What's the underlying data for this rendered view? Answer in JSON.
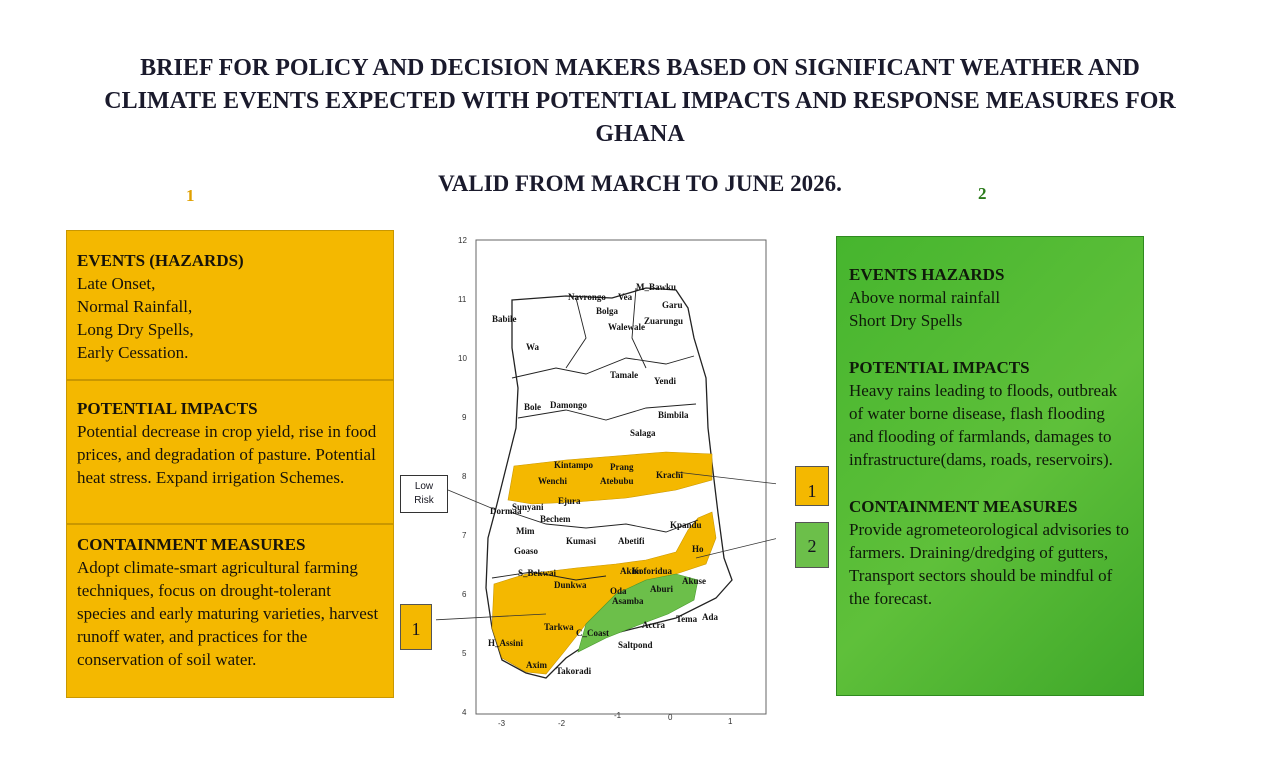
{
  "header": {
    "title_line1": "BRIEF FOR POLICY AND DECISION MAKERS BASED ON SIGNIFICANT WEATHER AND",
    "title_line2": "CLIMATE EVENTS EXPECTED WITH POTENTIAL IMPACTS AND RESPONSE MEASURES FOR",
    "title_line3": "GHANA",
    "valid": "VALID FROM  MARCH TO JUNE 2026."
  },
  "panel1": {
    "number": "1",
    "events_heading": "EVENTS (HAZARDS)",
    "events": [
      "Late Onset,",
      "Normal Rainfall,",
      "Long Dry Spells,",
      "Early Cessation."
    ],
    "impacts_heading": "POTENTIAL IMPACTS",
    "impacts_text": "Potential decrease in crop yield, rise in food prices, and degradation of pasture. Potential heat stress. Expand irrigation Schemes.",
    "measures_heading": "CONTAINMENT MEASURES",
    "measures_text": "Adopt climate-smart agricultural farming techniques, focus on drought-tolerant species and early maturing varieties, harvest runoff water, and practices for the conservation of soil water."
  },
  "panel2": {
    "number": "2",
    "events_heading": "EVENTS HAZARDS",
    "events": [
      "Above normal rainfall",
      "Short Dry Spells"
    ],
    "impacts_heading": "POTENTIAL IMPACTS",
    "impacts_text": "Heavy rains leading to floods, outbreak of water borne disease, flash flooding and flooding of farmlands, damages to infrastructure(dams, roads, reservoirs).",
    "measures_heading": "CONTAINMENT MEASURES",
    "measures_text": "Provide agrometeorological advisories to farmers. Draining/dredging of gutters, Transport sectors should be mindful of the forecast."
  },
  "legend": {
    "low_risk_line1": "Low",
    "low_risk_line2": "Risk",
    "zone1": "1",
    "zone2": "2"
  },
  "map": {
    "colors": {
      "zone1": "#f4b800",
      "zone2": "#6cbf4a",
      "low": "#ffffff"
    },
    "x_ticks": [
      "-3",
      "-2",
      "-1",
      "0",
      "1"
    ],
    "y_ticks": [
      "12",
      "11",
      "10",
      "9",
      "8",
      "7",
      "6",
      "5",
      "4"
    ],
    "towns": [
      "Navrongo",
      "Vea",
      "M_Bawku",
      "Garu",
      "Bolga",
      "Zuarungu",
      "Walewale",
      "Babile",
      "Wa",
      "Tamale",
      "Yendi",
      "Bole",
      "Damongo",
      "Bimbila",
      "Salaga",
      "Kintampo",
      "Prang",
      "Atebubu",
      "Wenchi",
      "Krachi",
      "Sunyani",
      "Ejura",
      "Dormaa",
      "Bechem",
      "Mim",
      "Goaso",
      "Kumasi",
      "Abetifi",
      "Kpandu",
      "Ho",
      "S_Bekwai",
      "Dunkwa",
      "Koforidua",
      "Oda",
      "Akuse",
      "Akim",
      "Asamba",
      "Aburi",
      "Tarkwa",
      "Accra",
      "Tema",
      "Ada",
      "C_Coast",
      "Saltpond",
      "H_Assini",
      "Axim",
      "Takoradi"
    ]
  }
}
